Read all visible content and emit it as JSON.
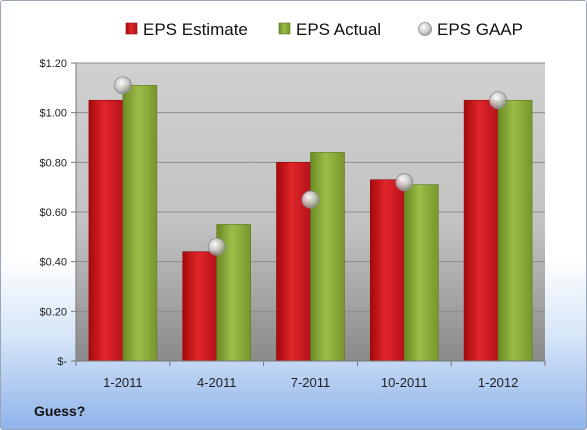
{
  "chart_data": {
    "type": "bar",
    "categories": [
      "1-2011",
      "4-2011",
      "7-2011",
      "10-2011",
      "1-2012"
    ],
    "series": [
      {
        "name": "EPS Estimate",
        "kind": "bar",
        "color": "#cc1f23",
        "values": [
          1.05,
          0.44,
          0.8,
          0.73,
          1.05
        ]
      },
      {
        "name": "EPS Actual",
        "kind": "bar",
        "color": "#86a832",
        "values": [
          1.11,
          0.55,
          0.84,
          0.71,
          1.05
        ]
      },
      {
        "name": "EPS GAAP",
        "kind": "marker",
        "color": "#c9c9c9",
        "values": [
          1.11,
          0.46,
          0.65,
          0.72,
          1.05
        ]
      }
    ],
    "ylim": [
      0,
      1.2
    ],
    "yticks": [
      0,
      0.2,
      0.4,
      0.6,
      0.8,
      1.0,
      1.2
    ],
    "ytick_labels": [
      "$-",
      "$0.20",
      "$0.40",
      "$0.60",
      "$0.80",
      "$1.00",
      "$1.20"
    ],
    "legend_position": "top",
    "grid": true
  },
  "footer_note": "Guess?"
}
